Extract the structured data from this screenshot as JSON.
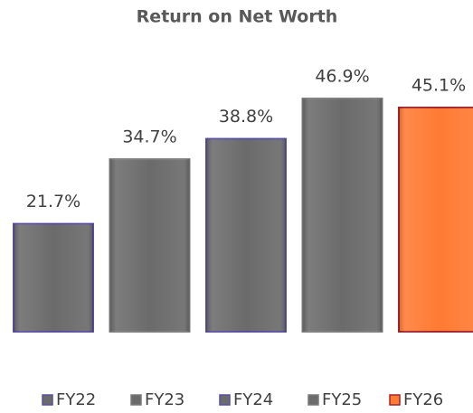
{
  "chart_data": {
    "type": "bar",
    "title": "Return on Net Worth",
    "categories": [
      "FY22",
      "FY23",
      "FY24",
      "FY25",
      "FY26"
    ],
    "values": [
      21.7,
      34.7,
      38.8,
      46.9,
      45.1
    ],
    "value_labels": [
      "21.7%",
      "34.7%",
      "38.8%",
      "46.9%",
      "45.1%"
    ],
    "colors": [
      "#6b6b6b",
      "#6b6b6b",
      "#6b6b6b",
      "#6b6b6b",
      "#ff7a33"
    ],
    "edge_colors": [
      "#5a4fa0",
      "#7a7a7a",
      "#5a4fa0",
      "#7a7a7a",
      "#a3262a"
    ],
    "legend": "bottom"
  }
}
